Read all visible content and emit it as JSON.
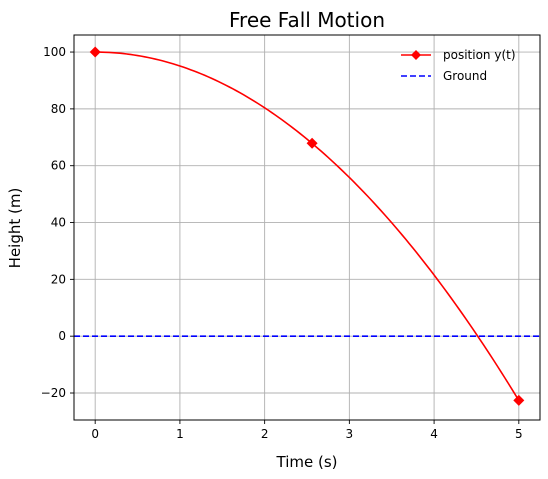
{
  "chart_data": {
    "type": "line",
    "title": "Free Fall Motion",
    "xlabel": "Time (s)",
    "ylabel": "Height (m)",
    "xlim": [
      -0.25,
      5.25
    ],
    "ylim": [
      -29.5,
      106
    ],
    "x_ticks": [
      0,
      1,
      2,
      3,
      4,
      5
    ],
    "y_ticks": [
      -20,
      0,
      20,
      40,
      60,
      80,
      100
    ],
    "x_tick_labels": [
      "0",
      "1",
      "2",
      "3",
      "4",
      "5"
    ],
    "y_tick_labels": [
      "−20",
      "0",
      "20",
      "40",
      "60",
      "80",
      "100"
    ],
    "grid": true,
    "legend_position": "top-right",
    "series": [
      {
        "name": "position y(t)",
        "color": "#ff0000",
        "marker": "diamond",
        "curve": {
          "y0": 100,
          "g": 9.81
        },
        "x": [
          0,
          0.25,
          0.5,
          0.75,
          1,
          1.25,
          1.5,
          1.75,
          2,
          2.25,
          2.5,
          2.75,
          3,
          3.25,
          3.5,
          3.75,
          4,
          4.25,
          4.5,
          4.75,
          5
        ],
        "y": [
          100,
          99.69,
          98.77,
          97.24,
          95.1,
          92.34,
          88.96,
          84.98,
          80.38,
          75.17,
          69.34,
          62.91,
          55.86,
          48.19,
          39.91,
          31.02,
          21.52,
          11.4,
          0.68,
          -10.67,
          -22.63
        ],
        "marker_points": [
          {
            "x": 0,
            "y": 100
          },
          {
            "x": 2.56,
            "y": 67.9
          },
          {
            "x": 5,
            "y": -22.6
          }
        ]
      },
      {
        "name": "Ground",
        "color": "#0000ff",
        "linestyle": "dashed",
        "y": 0
      }
    ]
  }
}
